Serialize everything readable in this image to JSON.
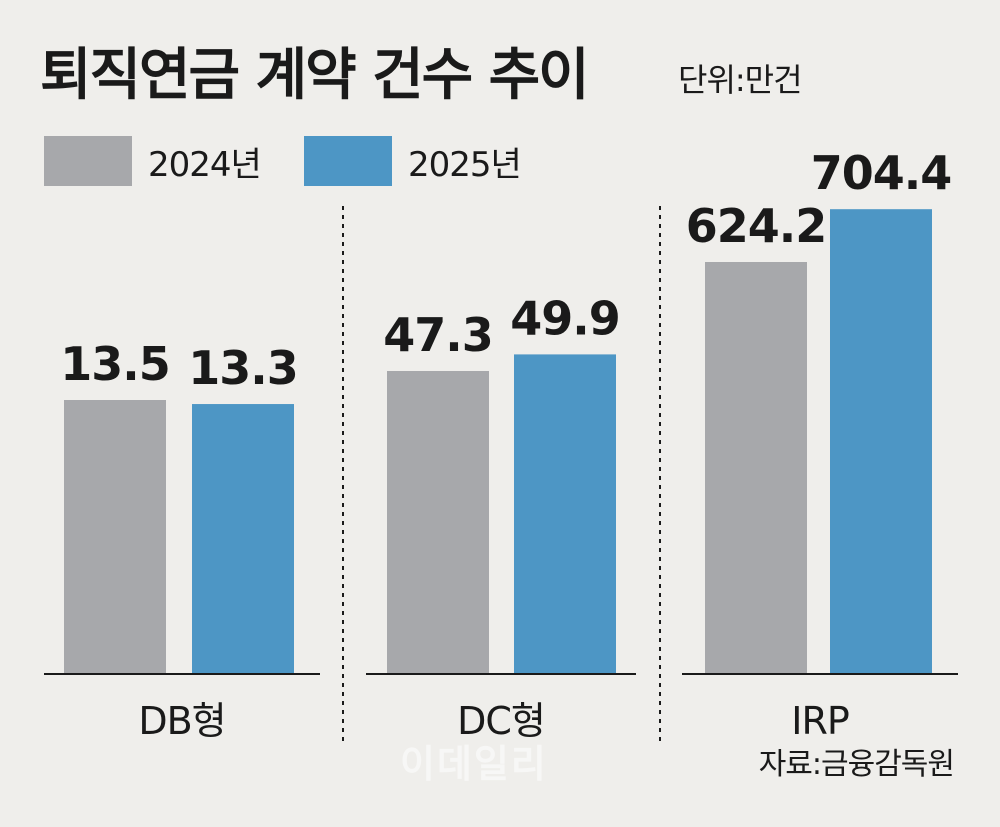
{
  "header": {
    "title": "퇴직연금 계약 건수 추이",
    "unit": "단위:만건"
  },
  "footer": {
    "source": "자료:금융감독원",
    "watermark": "이데일리"
  },
  "colors": {
    "background": "#efeeeb",
    "series_2024": "#a7a8ab",
    "series_2025": "#4d96c5",
    "text": "#1a1a1a"
  },
  "chart_data": {
    "type": "bar",
    "title": "퇴직연금 계약 건수 추이",
    "unit": "단위:만건",
    "categories": [
      "DB형",
      "DC형",
      "IRP"
    ],
    "series": [
      {
        "name": "2024년",
        "values": [
          13.5,
          47.3,
          624.2
        ]
      },
      {
        "name": "2025년",
        "values": [
          13.3,
          49.9,
          704.4
        ]
      }
    ],
    "data_labels": [
      [
        "13.5",
        "47.3",
        "624.2"
      ],
      [
        "13.3",
        "49.9",
        "704.4"
      ]
    ],
    "legend_position": "top-left",
    "grid": false,
    "axis_scale": "broken (each group scaled independently)"
  }
}
